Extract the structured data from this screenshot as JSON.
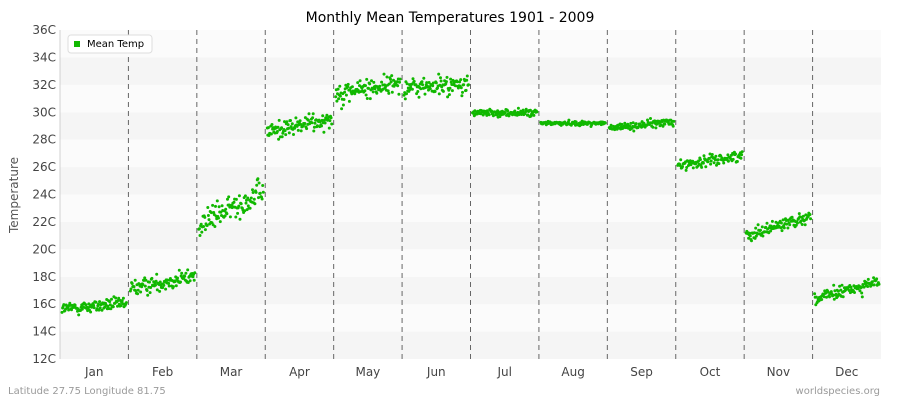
{
  "chart_data": {
    "type": "scatter",
    "title": "Monthly Mean Temperatures 1901 - 2009",
    "ylabel": "Temperature",
    "xlabel": "",
    "ylim": [
      12,
      36
    ],
    "y_ticks": [
      "12C",
      "14C",
      "16C",
      "18C",
      "20C",
      "22C",
      "24C",
      "26C",
      "28C",
      "30C",
      "32C",
      "34C",
      "36C"
    ],
    "categories": [
      "Jan",
      "Feb",
      "Mar",
      "Apr",
      "May",
      "Jun",
      "Jul",
      "Aug",
      "Sep",
      "Oct",
      "Nov",
      "Dec"
    ],
    "grid": "horizontal bands, dashed month separators",
    "legend_position": "top-left",
    "series": [
      {
        "name": "Mean Temp",
        "color": "#11b800",
        "years": "1901-2009",
        "monthly_ranges": [
          {
            "month": "Jan",
            "min": 13.4,
            "max": 17.4,
            "typical": [
              14.8,
              16.6
            ],
            "start": 15.6,
            "end": 16.4
          },
          {
            "month": "Feb",
            "min": 16.2,
            "max": 20.2,
            "typical": [
              16.6,
              18.8
            ],
            "start": 16.6,
            "end": 18.4
          },
          {
            "month": "Mar",
            "min": 19.6,
            "max": 26.2,
            "typical": [
              21.6,
              25.2
            ],
            "start": 20.2,
            "end": 25.0
          },
          {
            "month": "Apr",
            "min": 26.6,
            "max": 31.4,
            "typical": [
              27.8,
              30.4
            ],
            "start": 28.0,
            "end": 30.0
          },
          {
            "month": "May",
            "min": 28.8,
            "max": 34.6,
            "typical": [
              30.6,
              33.6
            ],
            "start": 30.6,
            "end": 32.2
          },
          {
            "month": "Jun",
            "min": 29.6,
            "max": 35.0,
            "typical": [
              30.8,
              33.6
            ],
            "start": 31.4,
            "end": 31.8
          },
          {
            "month": "Jul",
            "min": 29.0,
            "max": 31.0,
            "typical": [
              29.4,
              30.4
            ],
            "start": 30.0,
            "end": 30.0
          },
          {
            "month": "Aug",
            "min": 28.6,
            "max": 30.0,
            "typical": [
              28.9,
              29.5
            ],
            "start": 29.2,
            "end": 29.2
          },
          {
            "month": "Sep",
            "min": 27.6,
            "max": 30.4,
            "typical": [
              28.3,
              29.4
            ],
            "start": 28.8,
            "end": 29.8
          },
          {
            "month": "Oct",
            "min": 23.8,
            "max": 28.2,
            "typical": [
              25.5,
              27.0
            ],
            "start": 26.0,
            "end": 27.4
          },
          {
            "month": "Nov",
            "min": 19.0,
            "max": 24.0,
            "typical": [
              20.6,
              22.4
            ],
            "start": 20.6,
            "end": 23.4
          },
          {
            "month": "Dec",
            "min": 14.8,
            "max": 19.4,
            "typical": [
              15.8,
              17.6
            ],
            "start": 16.0,
            "end": 18.6
          }
        ]
      }
    ]
  },
  "footer": {
    "location": "Latitude 27.75 Longitude 81.75",
    "source": "worldspecies.org"
  }
}
